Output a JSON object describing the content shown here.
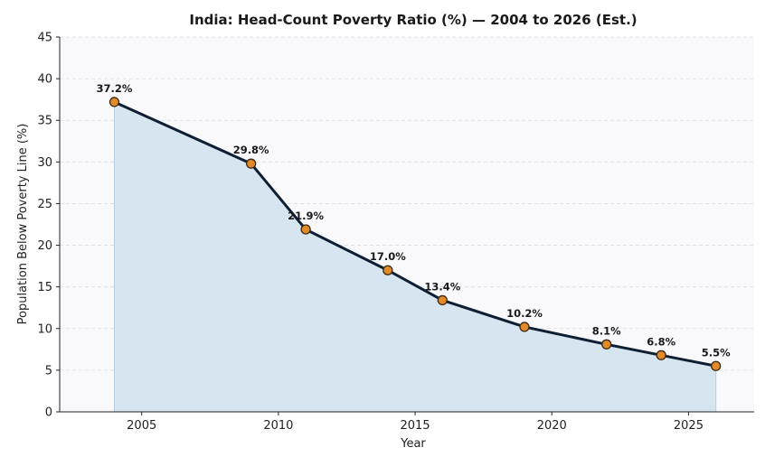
{
  "chart_data": {
    "type": "area",
    "title": "India: Head-Count Poverty Ratio (%) — 2004 to 2026 (Est.)",
    "xlabel": "Year",
    "ylabel": "Population Below Poverty Line (%)",
    "x": [
      2004,
      2009,
      2011,
      2014,
      2016,
      2019,
      2022,
      2024,
      2026
    ],
    "values": [
      37.2,
      29.8,
      21.9,
      17.0,
      13.4,
      10.2,
      8.1,
      6.8,
      5.5
    ],
    "data_labels": [
      "37.2%",
      "29.8%",
      "21.9%",
      "17.0%",
      "13.4%",
      "10.2%",
      "8.1%",
      "6.8%",
      "5.5%"
    ],
    "xlim": [
      2002,
      2027.4
    ],
    "ylim": [
      0,
      45
    ],
    "xticks": [
      2005,
      2010,
      2015,
      2020,
      2025
    ],
    "yticks": [
      0,
      5,
      10,
      15,
      20,
      25,
      30,
      35,
      40,
      45
    ],
    "grid": "horizontal-dashed",
    "legend": "none",
    "colors": {
      "line": "#0f1f33",
      "fill": "#d7e5f0",
      "fill_edge": "#b7cfe3",
      "marker_fill": "#e08a2a",
      "marker_edge": "#3a2a14",
      "plot_bg": "#f9f9fc",
      "grid": "#dcdcdc"
    }
  }
}
